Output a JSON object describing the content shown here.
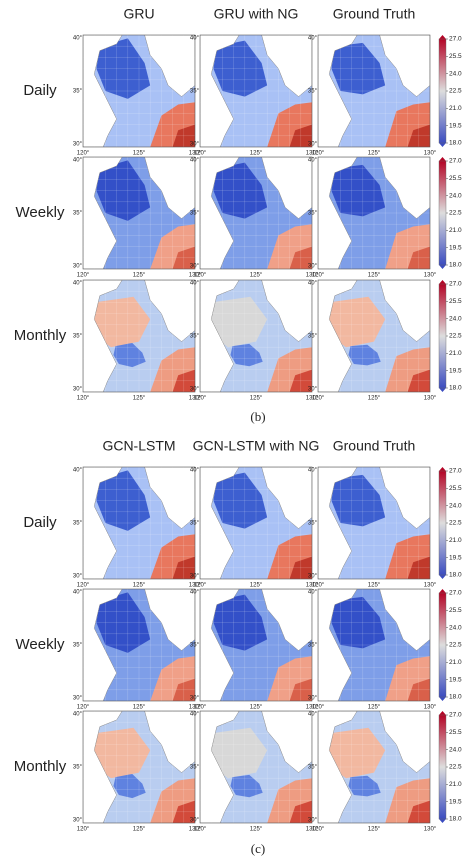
{
  "figure": {
    "panels": [
      {
        "columns": [
          "GRU",
          "GRU with NG",
          "Ground Truth"
        ],
        "rows": [
          "Daily",
          "Weekly",
          "Monthly"
        ],
        "caption": "(b)"
      },
      {
        "columns": [
          "GCN-LSTM",
          "GCN-LSTM with NG",
          "Ground Truth"
        ],
        "rows": [
          "Daily",
          "Weekly",
          "Monthly"
        ],
        "caption": "(c)"
      }
    ],
    "lat_ticks": [
      {
        "value": 30,
        "label": "30°"
      },
      {
        "value": 35,
        "label": "35°"
      },
      {
        "value": 40,
        "label": "40°"
      }
    ],
    "lon_ticks": [
      {
        "value": 120,
        "label": "120°"
      },
      {
        "value": 125,
        "label": "125°"
      },
      {
        "value": 130,
        "label": "130°"
      }
    ],
    "colorbar": {
      "ticks": [
        {
          "value": 18,
          "label": "18.0"
        },
        {
          "value": 19.5,
          "label": "19.5"
        },
        {
          "value": 21,
          "label": "21.0"
        },
        {
          "value": 22.5,
          "label": "22.5"
        },
        {
          "value": 24,
          "label": "24.0"
        },
        {
          "value": 25.5,
          "label": "25.5"
        },
        {
          "value": 27,
          "label": "27.0"
        }
      ]
    }
  }
}
